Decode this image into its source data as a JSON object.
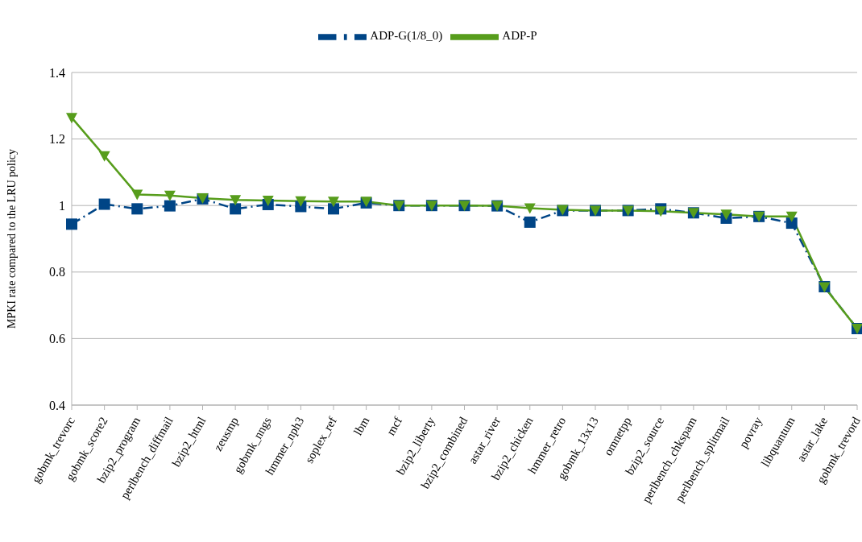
{
  "chart_data": {
    "type": "line",
    "ylabel": "MPKI rate compared to the LRU policy",
    "categories": [
      "gobmk_trevorc",
      "gobmk_score2",
      "bzip2_program",
      "perlbench_diffmail",
      "bzip2_html",
      "zeusmp",
      "gobmk_nngs",
      "hmmer_nph3",
      "soplex_ref",
      "lbm",
      "mcf",
      "bzip2_liberty",
      "bzip2_combined",
      "astar_river",
      "bzip2_chicken",
      "hmmer_retro",
      "gobmk_13x13",
      "omnetpp",
      "bzip2_source",
      "perlbench_chkspam",
      "perlbench_splitmail",
      "povray",
      "libquantum",
      "astar_lake",
      "gobmk_trevord"
    ],
    "series": [
      {
        "name": "ADP-G(1/8_0)",
        "color": "#004586",
        "marker": "square",
        "line_style": "dashed",
        "values": [
          0.944,
          1.004,
          0.99,
          0.999,
          1.02,
          0.99,
          1.003,
          0.997,
          0.99,
          1.008,
          1.0,
          1.0,
          1.0,
          0.999,
          0.95,
          0.985,
          0.985,
          0.985,
          0.99,
          0.978,
          0.962,
          0.967,
          0.947,
          0.756,
          0.63
        ]
      },
      {
        "name": "ADP-P",
        "color": "#579d1c",
        "marker": "triangle",
        "line_style": "solid",
        "values": [
          1.264,
          1.149,
          1.033,
          1.03,
          1.022,
          1.017,
          1.015,
          1.013,
          1.012,
          1.012,
          1.0,
          1.0,
          1.0,
          0.999,
          0.992,
          0.987,
          0.985,
          0.985,
          0.983,
          0.978,
          0.973,
          0.967,
          0.967,
          0.755,
          0.63
        ]
      }
    ],
    "ylim": [
      0.4,
      1.4
    ],
    "yticks": [
      0.4,
      0.6,
      0.8,
      1,
      {
        "value": 1.2,
        "label": "1.2"
      },
      {
        "value": 1.4,
        "label": "1.4"
      }
    ],
    "grid": "y",
    "legend": "top"
  }
}
